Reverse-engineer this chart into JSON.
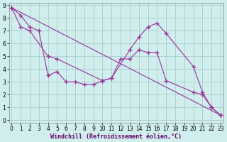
{
  "xlabel": "Windchill (Refroidissement éolien,°C)",
  "background_color": "#d0eeee",
  "grid_color": "#aacccc",
  "line_color": "#993399",
  "x_ticks": [
    0,
    1,
    2,
    3,
    4,
    5,
    6,
    7,
    8,
    9,
    10,
    11,
    12,
    13,
    14,
    15,
    16,
    17,
    18,
    19,
    20,
    21,
    22,
    23
  ],
  "y_ticks": [
    0,
    1,
    2,
    3,
    4,
    5,
    6,
    7,
    8,
    9
  ],
  "ylim": [
    -0.2,
    9.2
  ],
  "xlim": [
    -0.3,
    23.3
  ],
  "line1_x": [
    0,
    1,
    2,
    3,
    4,
    5,
    6,
    7,
    8,
    9,
    10,
    11,
    12,
    13,
    14,
    15,
    16,
    17,
    20,
    21,
    22,
    23
  ],
  "line1_y": [
    8.8,
    8.2,
    7.3,
    7.0,
    3.5,
    3.8,
    3.0,
    3.0,
    2.8,
    2.8,
    3.1,
    3.3,
    4.8,
    4.8,
    5.5,
    5.3,
    5.3,
    3.1,
    2.2,
    2.0,
    1.0,
    0.4
  ],
  "line2_x": [
    0,
    1,
    2,
    4,
    5,
    10,
    11,
    13,
    14,
    15,
    16,
    17,
    20,
    21,
    22,
    23
  ],
  "line2_y": [
    8.8,
    7.3,
    7.0,
    5.0,
    4.8,
    3.1,
    3.3,
    5.5,
    6.5,
    7.3,
    7.6,
    6.8,
    4.2,
    2.2,
    1.0,
    0.4
  ],
  "line3_x": [
    0,
    23
  ],
  "line3_y": [
    8.8,
    0.4
  ],
  "tick_fontsize": 5.5,
  "xlabel_fontsize": 6.0
}
